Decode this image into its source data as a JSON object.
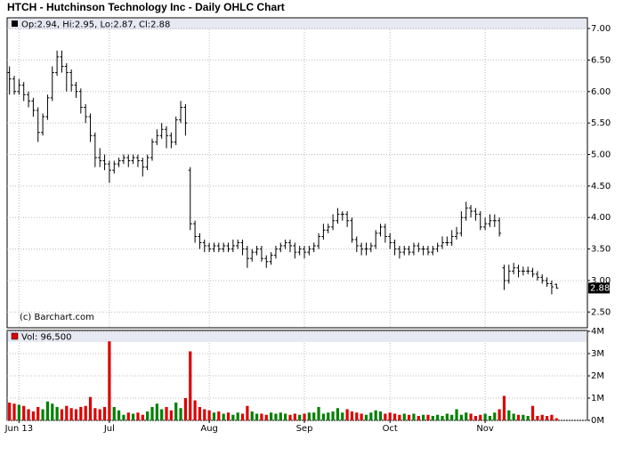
{
  "chart_data": {
    "type": "ohlc",
    "title": "HTCH - Hutchinson Technology Inc - Daily OHLC Chart",
    "legend_text": "Op:2.94, Hi:2.95, Lo:2.87, Cl:2.88",
    "volume_legend_text": "Vol: 96,500",
    "credit": "(c) Barchart.com",
    "up_color": "#008000",
    "down_color": "#dd0000",
    "grid": true,
    "xlim": [
      -0.5,
      121.5
    ],
    "xticks": [
      {
        "value": 2,
        "label": "Jun 13"
      },
      {
        "value": 21,
        "label": "Jul"
      },
      {
        "value": 42,
        "label": "Aug"
      },
      {
        "value": 62,
        "label": "Sep"
      },
      {
        "value": 80,
        "label": "Oct"
      },
      {
        "value": 100,
        "label": "Nov"
      }
    ],
    "ylim": [
      2.25,
      7.17
    ],
    "yticks": [
      {
        "value": 2.5,
        "label": "2.50"
      },
      {
        "value": 3,
        "label": "3.00"
      },
      {
        "value": 3.5,
        "label": "3.50"
      },
      {
        "value": 4,
        "label": "4.00"
      },
      {
        "value": 4.5,
        "label": "4.50"
      },
      {
        "value": 5,
        "label": "5.00"
      },
      {
        "value": 5.5,
        "label": "5.50"
      },
      {
        "value": 6,
        "label": "6.00"
      },
      {
        "value": 6.5,
        "label": "6.50"
      },
      {
        "value": 7,
        "label": "7.00"
      }
    ],
    "volume_ylim": [
      0,
      4000000
    ],
    "volume_ticks": [
      {
        "value": 0,
        "label": "0M"
      },
      {
        "value": 1000000,
        "label": "1M"
      },
      {
        "value": 2000000,
        "label": "2M"
      },
      {
        "value": 3000000,
        "label": "3M"
      },
      {
        "value": 4000000,
        "label": "4M"
      }
    ],
    "open": [
      6.3,
      6.2,
      6.0,
      6.1,
      5.95,
      5.85,
      5.7,
      5.35,
      5.6,
      5.9,
      6.3,
      6.55,
      6.4,
      6.3,
      6.1,
      6.0,
      5.75,
      5.6,
      5.3,
      4.95,
      4.9,
      4.85,
      4.75,
      4.85,
      4.9,
      4.95,
      4.9,
      4.95,
      4.9,
      4.8,
      4.95,
      5.2,
      5.3,
      5.4,
      5.3,
      5.2,
      5.55,
      5.75,
      4.75,
      3.9,
      3.7,
      3.6,
      3.55,
      3.5,
      3.55,
      3.5,
      3.55,
      3.5,
      3.55,
      3.6,
      3.5,
      3.35,
      3.45,
      3.5,
      3.35,
      3.3,
      3.4,
      3.5,
      3.55,
      3.6,
      3.55,
      3.45,
      3.5,
      3.45,
      3.5,
      3.55,
      3.7,
      3.8,
      3.85,
      3.95,
      4.05,
      4.05,
      3.95,
      3.65,
      3.55,
      3.5,
      3.5,
      3.55,
      3.75,
      3.85,
      3.7,
      3.6,
      3.5,
      3.45,
      3.5,
      3.45,
      3.55,
      3.5,
      3.5,
      3.45,
      3.5,
      3.55,
      3.6,
      3.6,
      3.7,
      3.75,
      4.0,
      4.15,
      4.1,
      4.05,
      3.85,
      3.9,
      3.95,
      3.95,
      3.2,
      3.0,
      3.15,
      3.2,
      3.15,
      3.15,
      3.15,
      3.1,
      3.05,
      3.0,
      2.95,
      2.94
    ],
    "high": [
      6.4,
      6.25,
      6.2,
      6.15,
      6.0,
      5.9,
      5.75,
      5.65,
      5.95,
      6.4,
      6.65,
      6.65,
      6.45,
      6.35,
      6.15,
      6.05,
      5.8,
      5.65,
      5.35,
      5.1,
      5.0,
      4.9,
      4.9,
      4.95,
      5.0,
      5.0,
      5.0,
      5.0,
      4.95,
      5.0,
      5.25,
      5.4,
      5.5,
      5.45,
      5.35,
      5.6,
      5.85,
      5.8,
      4.8,
      3.95,
      3.75,
      3.65,
      3.6,
      3.6,
      3.6,
      3.6,
      3.6,
      3.65,
      3.65,
      3.65,
      3.55,
      3.5,
      3.55,
      3.55,
      3.4,
      3.45,
      3.55,
      3.6,
      3.65,
      3.65,
      3.6,
      3.55,
      3.55,
      3.55,
      3.6,
      3.75,
      3.9,
      3.9,
      4.05,
      4.15,
      4.1,
      4.1,
      4.0,
      3.7,
      3.6,
      3.6,
      3.6,
      3.8,
      3.9,
      3.9,
      3.75,
      3.65,
      3.55,
      3.55,
      3.55,
      3.6,
      3.6,
      3.55,
      3.55,
      3.55,
      3.6,
      3.7,
      3.7,
      3.8,
      3.85,
      4.1,
      4.25,
      4.2,
      4.15,
      4.1,
      4.0,
      4.05,
      4.05,
      4.0,
      3.25,
      3.25,
      3.28,
      3.25,
      3.22,
      3.22,
      3.2,
      3.15,
      3.1,
      3.05,
      3.0,
      2.95
    ],
    "low": [
      5.95,
      5.95,
      5.95,
      5.85,
      5.75,
      5.6,
      5.2,
      5.3,
      5.55,
      5.85,
      6.25,
      6.3,
      6.0,
      6.0,
      5.9,
      5.65,
      5.5,
      5.2,
      4.8,
      4.8,
      4.75,
      4.55,
      4.7,
      4.8,
      4.85,
      4.8,
      4.85,
      4.8,
      4.65,
      4.75,
      4.9,
      5.15,
      5.25,
      5.1,
      5.1,
      5.15,
      5.5,
      5.3,
      3.8,
      3.6,
      3.5,
      3.45,
      3.45,
      3.45,
      3.45,
      3.45,
      3.45,
      3.45,
      3.5,
      3.4,
      3.2,
      3.3,
      3.4,
      3.3,
      3.2,
      3.25,
      3.35,
      3.45,
      3.5,
      3.45,
      3.35,
      3.4,
      3.35,
      3.4,
      3.45,
      3.5,
      3.65,
      3.75,
      3.8,
      3.9,
      3.95,
      3.85,
      3.6,
      3.45,
      3.4,
      3.4,
      3.45,
      3.5,
      3.7,
      3.6,
      3.5,
      3.4,
      3.35,
      3.4,
      3.4,
      3.4,
      3.45,
      3.4,
      3.4,
      3.4,
      3.45,
      3.5,
      3.55,
      3.55,
      3.65,
      3.7,
      3.95,
      4.0,
      3.95,
      3.8,
      3.8,
      3.85,
      3.85,
      3.7,
      2.85,
      2.95,
      3.1,
      3.05,
      3.08,
      3.1,
      3.05,
      3.0,
      2.95,
      2.9,
      2.78,
      2.87
    ],
    "close": [
      6.2,
      6.0,
      6.1,
      5.95,
      5.85,
      5.7,
      5.35,
      5.6,
      5.9,
      6.3,
      6.55,
      6.4,
      6.3,
      6.1,
      6.0,
      5.75,
      5.6,
      5.3,
      4.95,
      4.9,
      4.85,
      4.75,
      4.85,
      4.9,
      4.95,
      4.9,
      4.95,
      4.9,
      4.8,
      4.95,
      5.2,
      5.3,
      5.4,
      5.3,
      5.2,
      5.55,
      5.75,
      5.5,
      3.9,
      3.7,
      3.6,
      3.55,
      3.5,
      3.55,
      3.5,
      3.55,
      3.5,
      3.55,
      3.6,
      3.5,
      3.35,
      3.45,
      3.5,
      3.35,
      3.3,
      3.4,
      3.5,
      3.55,
      3.6,
      3.55,
      3.45,
      3.5,
      3.45,
      3.5,
      3.55,
      3.7,
      3.8,
      3.85,
      3.95,
      4.05,
      4.05,
      3.95,
      3.65,
      3.55,
      3.5,
      3.5,
      3.55,
      3.75,
      3.85,
      3.7,
      3.6,
      3.5,
      3.45,
      3.5,
      3.45,
      3.55,
      3.5,
      3.5,
      3.45,
      3.5,
      3.55,
      3.6,
      3.6,
      3.7,
      3.75,
      4.0,
      4.15,
      4.1,
      4.05,
      3.85,
      3.9,
      3.95,
      3.95,
      3.75,
      3.0,
      3.15,
      3.2,
      3.15,
      3.15,
      3.15,
      3.1,
      3.05,
      3.0,
      2.95,
      2.9,
      2.88
    ],
    "volume": [
      800000,
      750000,
      700000,
      650000,
      500000,
      400000,
      600000,
      500000,
      850000,
      750000,
      600000,
      500000,
      650000,
      550000,
      500000,
      600000,
      650000,
      1050000,
      550000,
      500000,
      600000,
      3550000,
      600000,
      450000,
      250000,
      350000,
      300000,
      350000,
      250000,
      400000,
      600000,
      750000,
      500000,
      600000,
      450000,
      800000,
      550000,
      1000000,
      3100000,
      900000,
      600000,
      500000,
      450000,
      350000,
      400000,
      300000,
      350000,
      250000,
      350000,
      300000,
      650000,
      400000,
      300000,
      300000,
      250000,
      350000,
      300000,
      350000,
      300000,
      250000,
      300000,
      250000,
      300000,
      350000,
      350000,
      600000,
      300000,
      350000,
      400000,
      550000,
      350000,
      500000,
      400000,
      350000,
      300000,
      250000,
      350000,
      450000,
      400000,
      300000,
      350000,
      300000,
      250000,
      300000,
      250000,
      300000,
      200000,
      250000,
      250000,
      200000,
      250000,
      200000,
      300000,
      250000,
      500000,
      250000,
      350000,
      300000,
      200000,
      250000,
      300000,
      200000,
      350000,
      500000,
      1100000,
      450000,
      300000,
      250000,
      250000,
      200000,
      650000,
      200000,
      250000,
      200000,
      250000,
      96500
    ]
  }
}
